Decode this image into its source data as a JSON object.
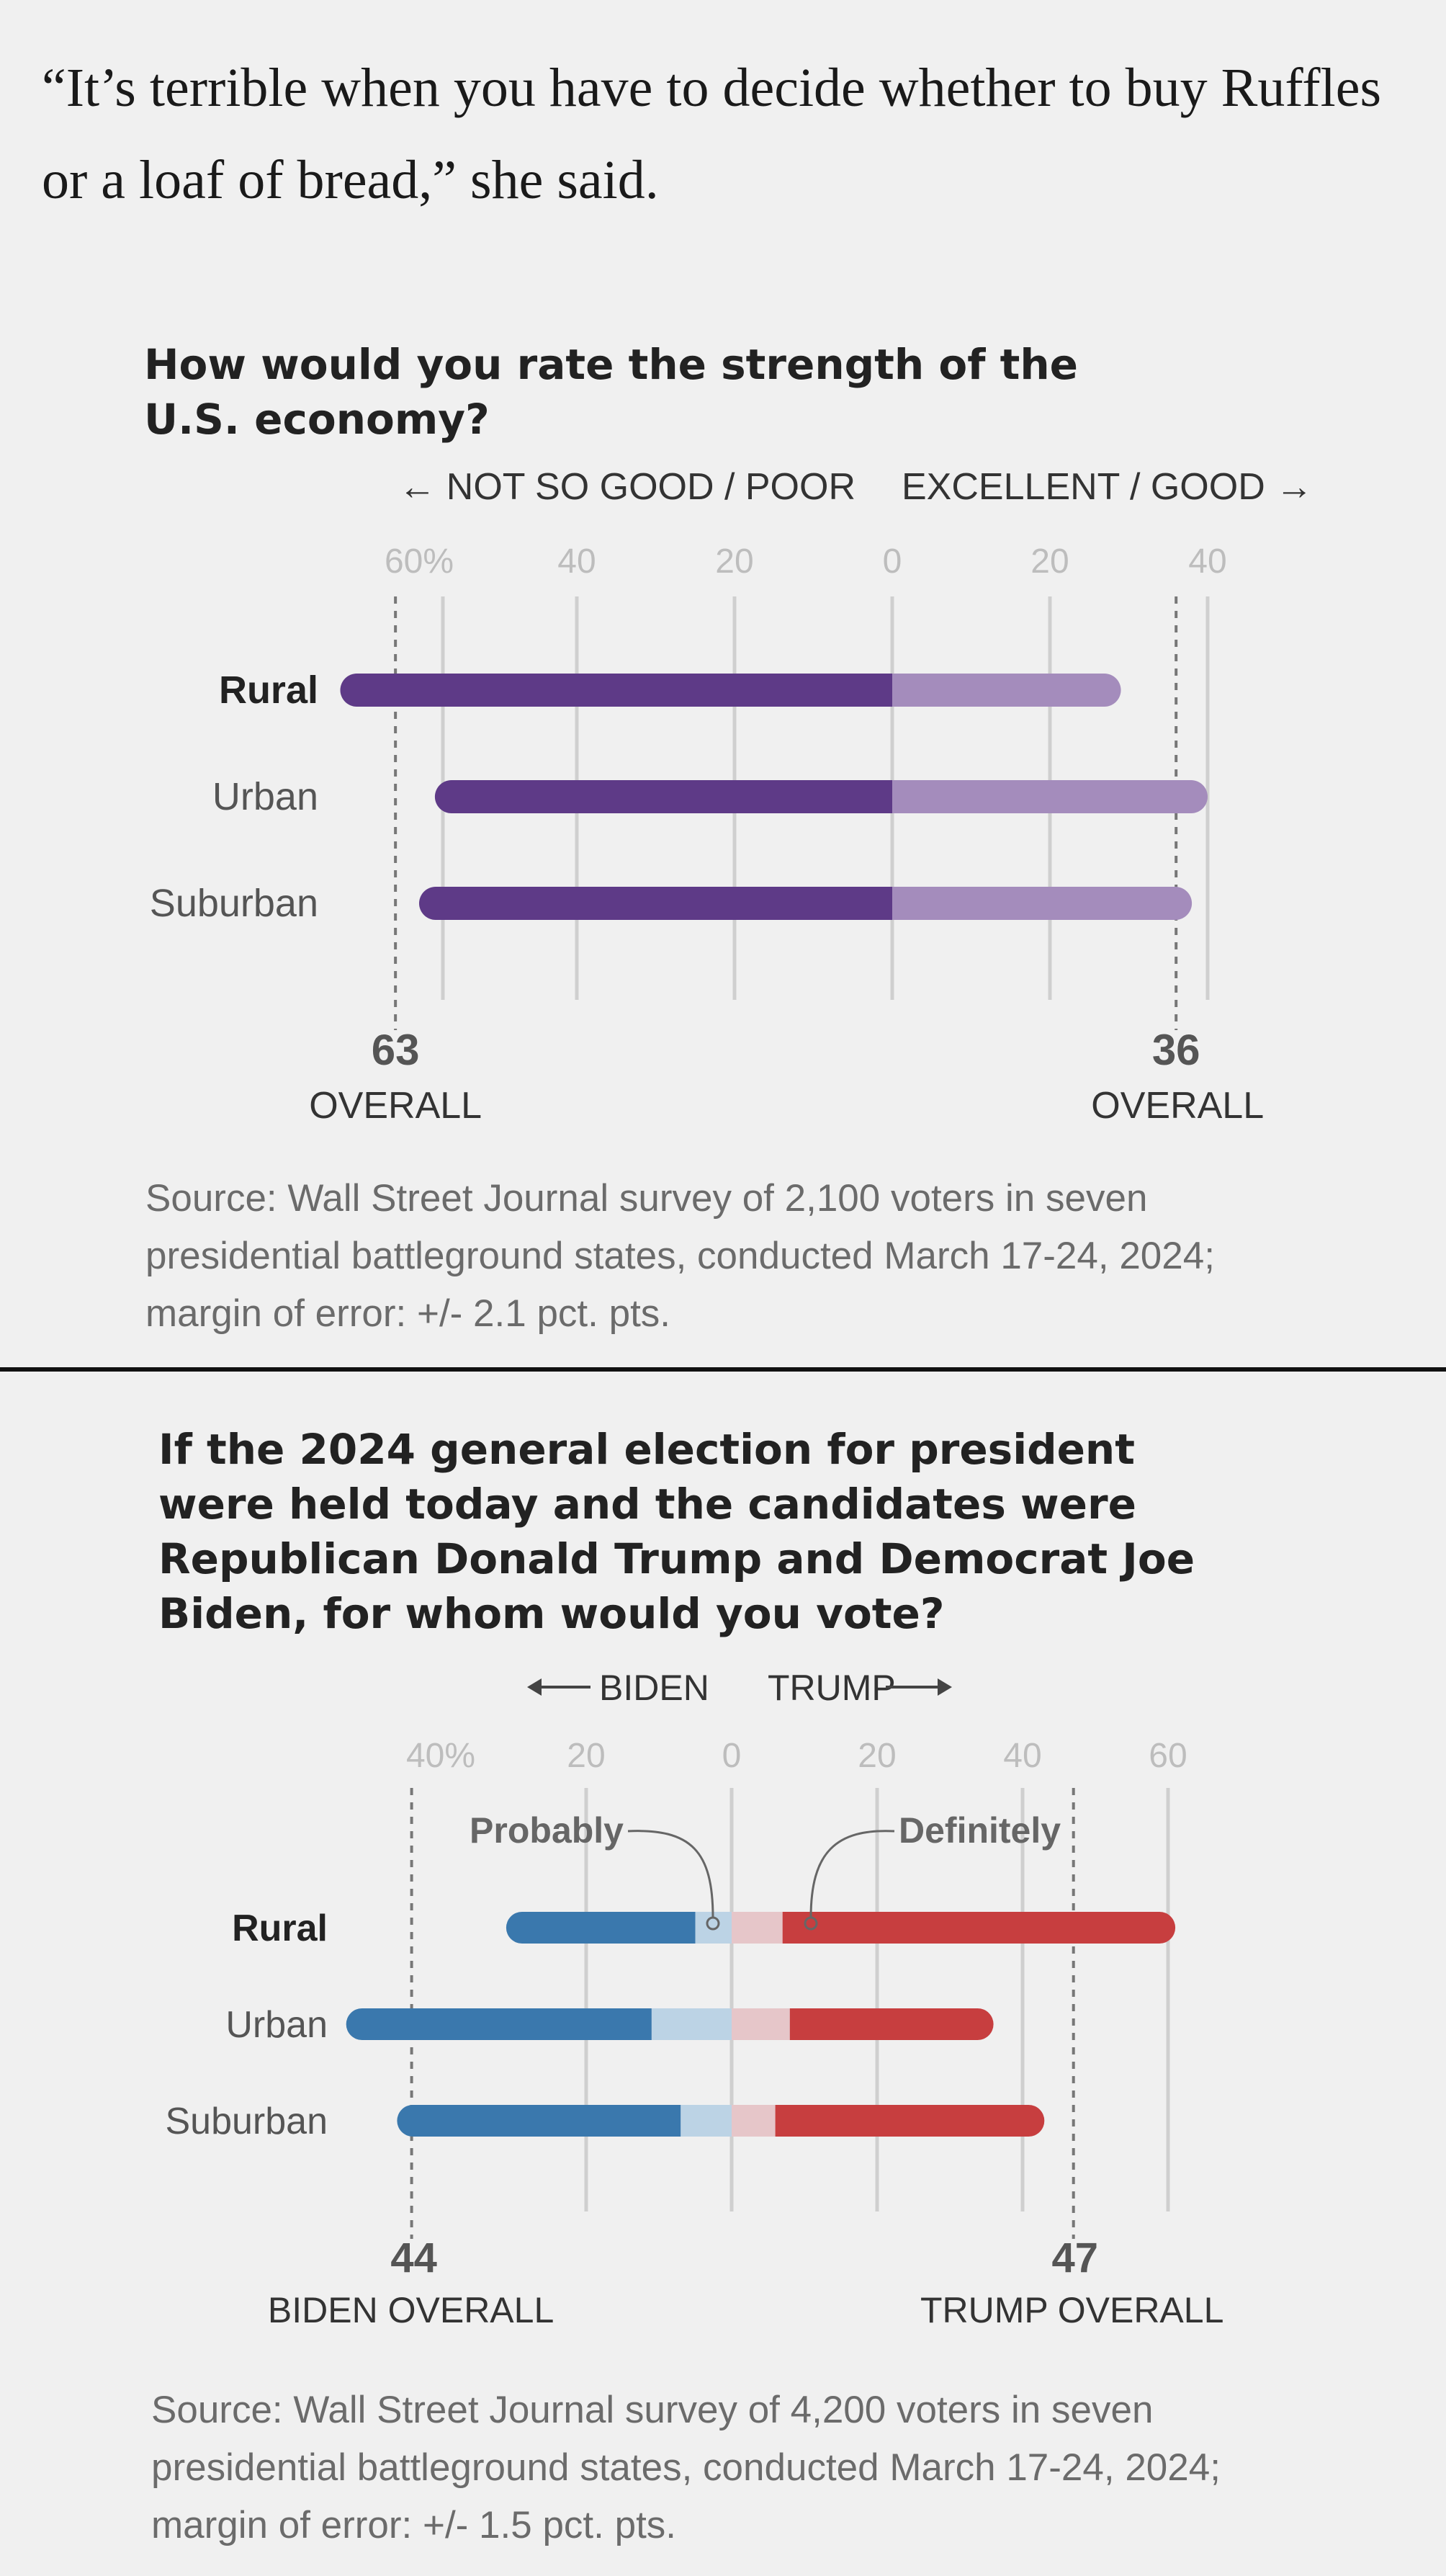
{
  "quote": "“It’s terrible when you have to decide whether to buy Ruffles or a loaf of bread,” she said.",
  "chart_data": [
    {
      "type": "bar",
      "title": "How would you rate the strength of the U.S. economy?",
      "direction_left": "← NOT SO GOOD / POOR",
      "direction_right": "EXCELLENT / GOOD →",
      "left_ticks": [
        "60%",
        "40",
        "20",
        "0"
      ],
      "right_ticks": [
        "20",
        "40"
      ],
      "categories": [
        "Rural",
        "Urban",
        "Suburban"
      ],
      "series": [
        {
          "name": "NOT SO GOOD / POOR",
          "values": [
            70,
            58,
            60
          ]
        },
        {
          "name": "EXCELLENT / GOOD",
          "values": [
            29,
            40,
            38
          ]
        }
      ],
      "overall": [
        {
          "value": "63",
          "label": "OVERALL"
        },
        {
          "value": "36",
          "label": "OVERALL"
        }
      ],
      "colors": {
        "left": "#5e3a87",
        "right": "#a48cbc"
      },
      "source": "Source: Wall Street Journal survey of 2,100 voters in seven presidential battleground states, conducted March 17-24, 2024; margin of error: +/- 2.1 pct. pts."
    },
    {
      "type": "bar",
      "title": "If the 2024 general election for president were held today and the candidates were Republican Donald Trump and Democrat Joe Biden, for whom would you vote?",
      "direction_left": "BIDEN",
      "direction_right": "TRUMP",
      "left_ticks": [
        "40%",
        "20",
        "0"
      ],
      "right_ticks": [
        "20",
        "40",
        "60"
      ],
      "annotations": {
        "probably": "Probably",
        "definitely": "Definitely"
      },
      "categories": [
        "Rural",
        "Urban",
        "Suburban"
      ],
      "series": [
        {
          "name": "BIDEN",
          "values": [
            31,
            53,
            46
          ],
          "probably": [
            5,
            11,
            7
          ]
        },
        {
          "name": "TRUMP",
          "values": [
            61,
            36,
            43
          ],
          "probably": [
            7,
            8,
            6
          ]
        }
      ],
      "overall": [
        {
          "value": "44",
          "label": "BIDEN OVERALL"
        },
        {
          "value": "47",
          "label": "TRUMP OVERALL"
        }
      ],
      "colors": {
        "left": "#3a78ad",
        "left_light": "#bcd3e5",
        "right": "#c73e3f",
        "right_light": "#e6c6c9"
      },
      "source": "Source: Wall Street Journal survey of 4,200 voters in seven presidential battleground states, conducted March 17-24, 2024; margin of error: +/- 1.5 pct. pts."
    }
  ]
}
